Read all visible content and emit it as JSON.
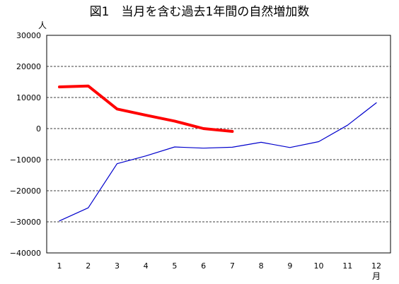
{
  "chart_data": {
    "type": "line",
    "title": "図1　当月を含む過去1年間の自然増加数",
    "y_unit": "人",
    "x_unit": "月",
    "ylim": [
      -40000,
      30000
    ],
    "y_ticks": [
      30000,
      20000,
      10000,
      0,
      -10000,
      -20000,
      -30000,
      -40000
    ],
    "y_tick_labels": [
      "30000",
      "20000",
      "10000",
      "0",
      "−10000",
      "−20000",
      "−30000",
      "−40000"
    ],
    "grid": "horizontal dashed",
    "categories": [
      "1",
      "2",
      "3",
      "4",
      "5",
      "6",
      "7",
      "8",
      "9",
      "10",
      "11",
      "12"
    ],
    "series": [
      {
        "color": "#ff0000",
        "values": [
          13400,
          13700,
          6300,
          4300,
          2400,
          0,
          -900,
          null,
          null,
          null,
          null,
          null
        ]
      },
      {
        "color": "#0000cc",
        "values": [
          -29700,
          -25500,
          -11300,
          -8800,
          -5900,
          -6300,
          -6000,
          -4400,
          -6100,
          -4200,
          1100,
          8300
        ]
      }
    ]
  }
}
